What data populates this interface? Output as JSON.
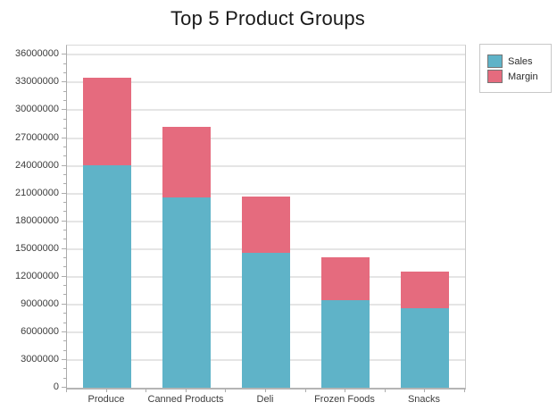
{
  "title": "Top 5 Product Groups",
  "legend": {
    "items": [
      {
        "label": "Sales",
        "color": "#5fb3c8"
      },
      {
        "label": "Margin",
        "color": "#e56b7e"
      }
    ]
  },
  "colors": {
    "sales": "#5fb3c8",
    "margin": "#e56b7e",
    "gridline": "#e5e5e5",
    "axis": "#adadad",
    "label_text": "#3d3d3d",
    "title_text": "#1a1a1a",
    "background": "#ffffff"
  },
  "chart_data": {
    "type": "bar",
    "stacked": true,
    "title": "Top 5 Product Groups",
    "categories": [
      "Produce",
      "Canned Products",
      "Deli",
      "Frozen Foods",
      "Snacks"
    ],
    "series": [
      {
        "name": "Sales",
        "color": "#5fb3c8",
        "values": [
          24100000,
          20600000,
          14600000,
          9500000,
          8600000
        ]
      },
      {
        "name": "Margin",
        "color": "#e56b7e",
        "values": [
          9500000,
          7600000,
          6100000,
          4600000,
          4000000
        ]
      }
    ],
    "totals": [
      33600000,
      28200000,
      20700000,
      14100000,
      12600000
    ],
    "xlabel": "",
    "ylabel": "",
    "ylim": [
      0,
      37000000
    ],
    "yticks": [
      0,
      3000000,
      6000000,
      9000000,
      12000000,
      15000000,
      18000000,
      21000000,
      24000000,
      27000000,
      30000000,
      33000000,
      36000000
    ],
    "ytick_interval": 3000000,
    "yminor_interval": 1000000,
    "grid": "horizontal-major",
    "legend_position": "top-right"
  }
}
